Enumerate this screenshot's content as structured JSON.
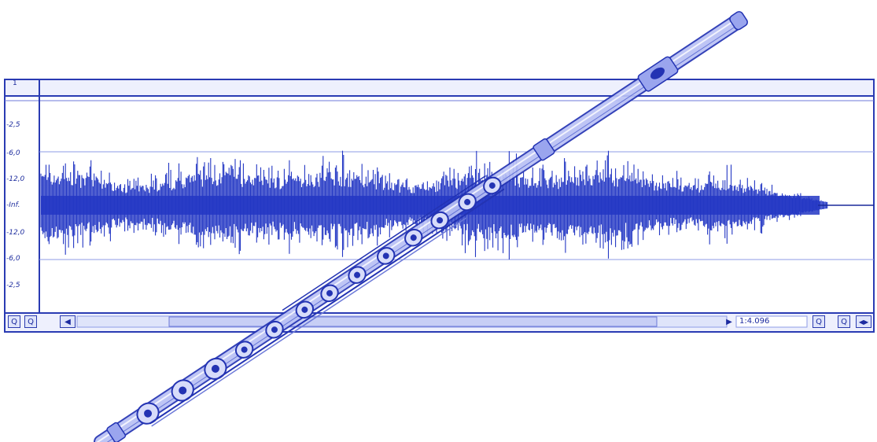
{
  "editor": {
    "channel_label": "1",
    "amplitude_labels": [
      "-2,5",
      "-6,0",
      "-12,0",
      "-Inf.",
      "-12,0",
      "-6,0",
      "-2,5"
    ],
    "time_readout": "1:4.096",
    "colors": {
      "waveform": "#2337c4",
      "frame": "#2a3bb3",
      "panel": "#ffffff",
      "scrollbar": "#dfe4fa",
      "flute_body": "#a9b3f2",
      "flute_line": "#2333b3"
    },
    "toolbar_left": [
      {
        "icon": "zoom-out-icon",
        "glyph": "Q"
      },
      {
        "icon": "zoom-in-icon",
        "glyph": "Q"
      },
      {
        "icon": "scroll-left-icon",
        "glyph": "◀"
      }
    ],
    "toolbar_right": [
      {
        "icon": "play-icon",
        "glyph": "▶"
      },
      {
        "icon": "zoom-out-icon",
        "glyph": "Q"
      },
      {
        "icon": "zoom-in-icon",
        "glyph": "Q"
      },
      {
        "icon": "scroll-horizontal-icon",
        "glyph": "◀▶"
      }
    ]
  },
  "overlay": {
    "object": "flute-icon"
  }
}
